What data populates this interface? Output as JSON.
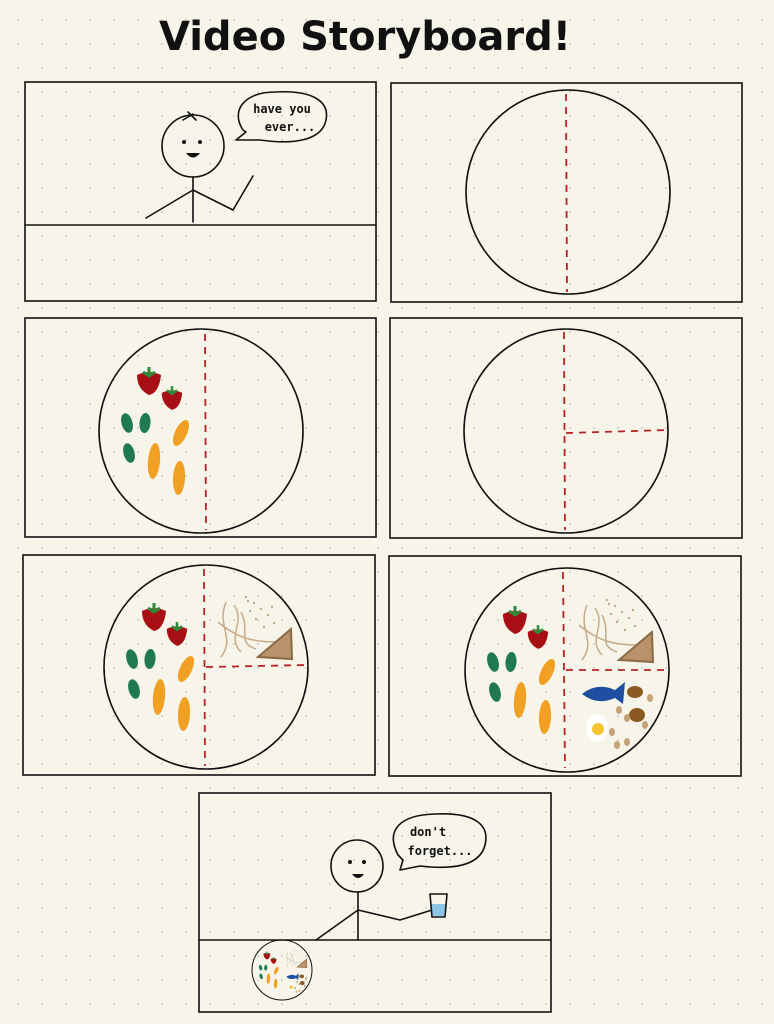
{
  "title": "Video Storyboard!",
  "panels": [
    {
      "speech": [
        "have you",
        "ever..."
      ]
    },
    {},
    {},
    {},
    {},
    {},
    {
      "speech": [
        "don't",
        "forget..."
      ]
    }
  ],
  "colors": {
    "background": "#f7f5ea",
    "divider": "#b52424",
    "strawberry": "#a80f14",
    "leaf": "#2f8a3a",
    "green_veg": "#1f7a52",
    "orange_veg": "#f2a024",
    "grain": "#c7ab8a",
    "bread": "#b8926a",
    "fish": "#1f4fa0",
    "brown": "#8a5a22",
    "egg_yolk": "#f5c431",
    "water": "#8ec6e8"
  }
}
